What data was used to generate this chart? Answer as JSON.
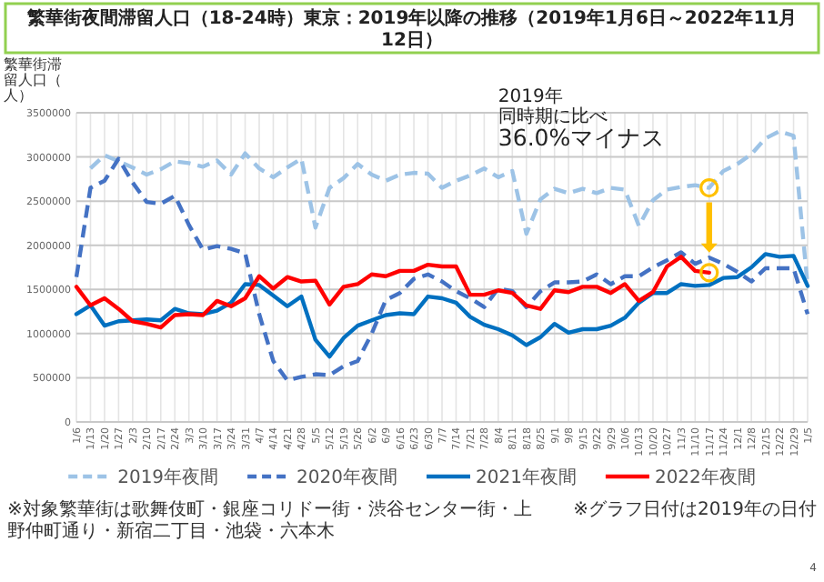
{
  "chart_data": {
    "type": "line",
    "title": "繁華街夜間滞留人口（18-24時）東京：2019年以降の推移（2019年1月6日～2022年11月12日）",
    "ylabel": "繁華街滞留人口（人）",
    "categories": [
      "1/6",
      "1/13",
      "1/20",
      "1/27",
      "2/3",
      "2/10",
      "2/17",
      "2/24",
      "3/3",
      "3/10",
      "3/17",
      "3/24",
      "3/31",
      "4/7",
      "4/14",
      "4/21",
      "4/28",
      "5/5",
      "5/12",
      "5/19",
      "5/26",
      "6/2",
      "6/9",
      "6/16",
      "6/23",
      "6/30",
      "7/7",
      "7/14",
      "7/21",
      "7/28",
      "8/4",
      "8/11",
      "8/18",
      "8/25",
      "9/1",
      "9/8",
      "9/15",
      "9/22",
      "9/29",
      "10/6",
      "10/13",
      "10/20",
      "10/27",
      "11/3",
      "11/10",
      "11/17",
      "11/24",
      "12/1",
      "12/8",
      "12/15",
      "12/22",
      "12/29",
      "1/5"
    ],
    "ylim": [
      0,
      3500000
    ],
    "yticks": [
      0,
      500000,
      1000000,
      1500000,
      2000000,
      2500000,
      3000000,
      3500000
    ],
    "grid": true,
    "legend": "bottom",
    "series": [
      {
        "name": "2019年夜間",
        "color": "#9dc3e6",
        "line_style": "dashed",
        "values": [
          null,
          2870000,
          3020000,
          2950000,
          2880000,
          2800000,
          2860000,
          2950000,
          2930000,
          2890000,
          2960000,
          2800000,
          3040000,
          2870000,
          2770000,
          2880000,
          2980000,
          2200000,
          2650000,
          2760000,
          2920000,
          2800000,
          2730000,
          2800000,
          2820000,
          2810000,
          2650000,
          2730000,
          2790000,
          2870000,
          2770000,
          2840000,
          2130000,
          2520000,
          2640000,
          2590000,
          2640000,
          2590000,
          2650000,
          2630000,
          2220000,
          2510000,
          2630000,
          2660000,
          2680000,
          2650000,
          2840000,
          2920000,
          3030000,
          3210000,
          3290000,
          3240000,
          1540000
        ]
      },
      {
        "name": "2020年夜間",
        "color": "#4472c4",
        "line_style": "dashed",
        "values": [
          1640000,
          2650000,
          2730000,
          2980000,
          2710000,
          2490000,
          2470000,
          2560000,
          2230000,
          1950000,
          1990000,
          1960000,
          1910000,
          1220000,
          690000,
          470000,
          510000,
          540000,
          530000,
          630000,
          690000,
          1000000,
          1380000,
          1460000,
          1620000,
          1670000,
          1590000,
          1480000,
          1400000,
          1300000,
          1510000,
          1480000,
          1300000,
          1480000,
          1580000,
          1580000,
          1590000,
          1670000,
          1560000,
          1650000,
          1650000,
          1750000,
          1830000,
          1920000,
          1790000,
          1860000,
          1790000,
          1700000,
          1590000,
          1740000,
          1740000,
          1740000,
          1220000
        ]
      },
      {
        "name": "2021年夜間",
        "color": "#0070c0",
        "line_style": "solid",
        "values": [
          1220000,
          1320000,
          1090000,
          1140000,
          1150000,
          1160000,
          1150000,
          1280000,
          1230000,
          1220000,
          1260000,
          1350000,
          1560000,
          1550000,
          1430000,
          1310000,
          1420000,
          930000,
          740000,
          950000,
          1090000,
          1150000,
          1210000,
          1230000,
          1220000,
          1420000,
          1400000,
          1350000,
          1190000,
          1100000,
          1050000,
          980000,
          870000,
          960000,
          1110000,
          1010000,
          1050000,
          1050000,
          1090000,
          1180000,
          1350000,
          1460000,
          1460000,
          1560000,
          1540000,
          1550000,
          1630000,
          1640000,
          1750000,
          1900000,
          1870000,
          1880000,
          1540000
        ]
      },
      {
        "name": "2022年夜間",
        "color": "#ff0000",
        "line_style": "solid",
        "values": [
          1530000,
          1320000,
          1400000,
          1280000,
          1140000,
          1110000,
          1070000,
          1210000,
          1220000,
          1210000,
          1370000,
          1310000,
          1400000,
          1650000,
          1510000,
          1640000,
          1590000,
          1600000,
          1330000,
          1530000,
          1560000,
          1670000,
          1650000,
          1710000,
          1710000,
          1780000,
          1760000,
          1760000,
          1440000,
          1440000,
          1490000,
          1460000,
          1320000,
          1280000,
          1490000,
          1470000,
          1530000,
          1530000,
          1460000,
          1560000,
          1370000,
          1470000,
          1760000,
          1870000,
          1710000,
          1690000,
          null,
          null,
          null,
          null,
          null,
          null,
          null
        ]
      }
    ],
    "annotations": [
      "2019年",
      "同時期に比べ",
      "36.0%マイナス",
      "※対象繁華街は歌舞伎町・銀座コリドー街・渋谷センター街・上野仲町通り・新宿二丁目・池袋・六本木",
      "※グラフ日付は2019年の日付",
      "4"
    ]
  }
}
